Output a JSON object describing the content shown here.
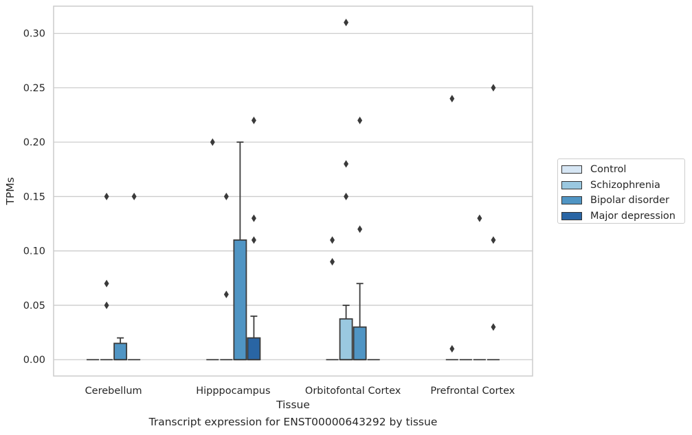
{
  "chart_data": {
    "type": "boxplot",
    "xlabel": "Tissue",
    "ylabel": "TPMs",
    "ylim": [
      -0.015,
      0.325
    ],
    "yticks": [
      "0.00",
      "0.05",
      "0.10",
      "0.15",
      "0.20",
      "0.25",
      "0.30"
    ],
    "grid": "horizontal",
    "categories": [
      "Cerebellum",
      "Hipppocampus",
      "Orbitofontal Cortex",
      "Prefrontal Cortex"
    ],
    "series": [
      {
        "name": "Control",
        "color": "#d6e6f4",
        "boxes": [
          {
            "q1": 0,
            "median": 0,
            "q3": 0,
            "whisker_low": 0,
            "whisker_high": 0,
            "outliers": []
          },
          {
            "q1": 0,
            "median": 0,
            "q3": 0,
            "whisker_low": 0,
            "whisker_high": 0,
            "outliers": [
              0.2
            ]
          },
          {
            "q1": 0,
            "median": 0,
            "q3": 0,
            "whisker_low": 0,
            "whisker_high": 0,
            "outliers": [
              0.11,
              0.09
            ]
          },
          {
            "q1": 0,
            "median": 0,
            "q3": 0,
            "whisker_low": 0,
            "whisker_high": 0,
            "outliers": [
              0.24,
              0.01
            ]
          }
        ]
      },
      {
        "name": "Schizophrenia",
        "color": "#9ac8e0",
        "boxes": [
          {
            "q1": 0,
            "median": 0,
            "q3": 0,
            "whisker_low": 0,
            "whisker_high": 0,
            "outliers": [
              0.15,
              0.07,
              0.05
            ]
          },
          {
            "q1": 0,
            "median": 0,
            "q3": 0,
            "whisker_low": 0,
            "whisker_high": 0,
            "outliers": [
              0.15,
              0.06
            ]
          },
          {
            "q1": 0,
            "median": 0,
            "q3": 0.0375,
            "whisker_low": 0,
            "whisker_high": 0.05,
            "outliers": [
              0.31,
              0.18,
              0.15
            ]
          },
          {
            "q1": 0,
            "median": 0,
            "q3": 0,
            "whisker_low": 0,
            "whisker_high": 0,
            "outliers": []
          }
        ]
      },
      {
        "name": "Bipolar disorder",
        "color": "#5095c4",
        "boxes": [
          {
            "q1": 0,
            "median": 0,
            "q3": 0.015,
            "whisker_low": 0,
            "whisker_high": 0.02,
            "outliers": []
          },
          {
            "q1": 0,
            "median": 0,
            "q3": 0.11,
            "whisker_low": 0,
            "whisker_high": 0.2,
            "outliers": []
          },
          {
            "q1": 0,
            "median": 0,
            "q3": 0.03,
            "whisker_low": 0,
            "whisker_high": 0.07,
            "outliers": [
              0.22,
              0.12
            ]
          },
          {
            "q1": 0,
            "median": 0,
            "q3": 0,
            "whisker_low": 0,
            "whisker_high": 0,
            "outliers": [
              0.13
            ]
          }
        ]
      },
      {
        "name": "Major depression",
        "color": "#2965a4",
        "boxes": [
          {
            "q1": 0,
            "median": 0,
            "q3": 0,
            "whisker_low": 0,
            "whisker_high": 0,
            "outliers": [
              0.15
            ]
          },
          {
            "q1": 0,
            "median": 0,
            "q3": 0.02,
            "whisker_low": 0,
            "whisker_high": 0.04,
            "outliers": [
              0.22,
              0.13,
              0.11
            ]
          },
          {
            "q1": 0,
            "median": 0,
            "q3": 0,
            "whisker_low": 0,
            "whisker_high": 0,
            "outliers": []
          },
          {
            "q1": 0,
            "median": 0,
            "q3": 0,
            "whisker_low": 0,
            "whisker_high": 0,
            "outliers": [
              0.25,
              0.11,
              0.03
            ]
          }
        ]
      }
    ],
    "legend_position": "right",
    "caption": "Transcript expression for ENST00000643292 by tissue"
  }
}
